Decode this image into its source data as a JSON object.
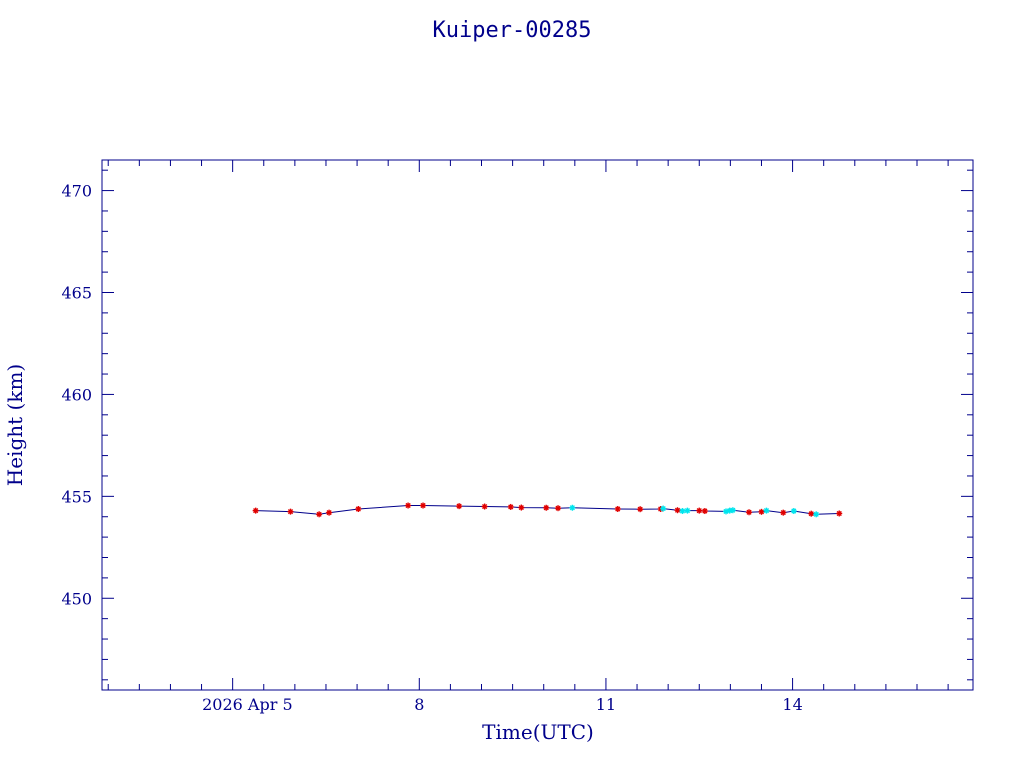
{
  "chart_data": {
    "type": "scatter",
    "title": "Kuiper-00285",
    "xlabel": "Time(UTC)",
    "ylabel": "Height (km)",
    "ylim": [
      445.5,
      471.5
    ],
    "y_major_ticks": [
      450,
      455,
      460,
      465,
      470
    ],
    "y_minor_step": 1,
    "xlim": [
      1.9,
      15.9
    ],
    "x_ticks": [
      {
        "value": 4.0,
        "label": "2026 Apr  5"
      },
      {
        "value": 7.0,
        "label": "8"
      },
      {
        "value": 10.0,
        "label": "11"
      },
      {
        "value": 13.0,
        "label": "14"
      }
    ],
    "x_minor_step": 0.5,
    "grid": false,
    "colors": {
      "frame": "#00008b",
      "text": "#00008b",
      "line": "#00008b",
      "series_red": "#e00000",
      "series_cyan": "#00e5ee"
    },
    "series": [
      {
        "color": "red",
        "marker": "asterisk",
        "values": [
          [
            4.37,
            454.3
          ],
          [
            4.93,
            454.25
          ],
          [
            5.39,
            454.12
          ],
          [
            5.55,
            454.2
          ],
          [
            6.02,
            454.38
          ],
          [
            6.82,
            454.55
          ],
          [
            7.06,
            454.55
          ],
          [
            7.64,
            454.52
          ],
          [
            8.05,
            454.5
          ],
          [
            8.47,
            454.48
          ],
          [
            8.64,
            454.45
          ],
          [
            9.04,
            454.44
          ],
          [
            9.23,
            454.42
          ],
          [
            10.19,
            454.38
          ],
          [
            10.55,
            454.37
          ],
          [
            10.88,
            454.38
          ],
          [
            11.15,
            454.32
          ],
          [
            11.5,
            454.3
          ],
          [
            11.59,
            454.28
          ],
          [
            12.3,
            454.22
          ],
          [
            12.5,
            454.24
          ],
          [
            12.85,
            454.2
          ],
          [
            13.3,
            454.15
          ],
          [
            13.75,
            454.16
          ]
        ]
      },
      {
        "color": "cyan",
        "marker": "asterisk",
        "values": [
          [
            9.46,
            454.44
          ],
          [
            10.92,
            454.4
          ],
          [
            11.23,
            454.28
          ],
          [
            11.31,
            454.3
          ],
          [
            11.93,
            454.26
          ],
          [
            11.99,
            454.3
          ],
          [
            12.04,
            454.32
          ],
          [
            12.58,
            454.3
          ],
          [
            13.02,
            454.28
          ],
          [
            13.38,
            454.12
          ]
        ]
      }
    ]
  }
}
